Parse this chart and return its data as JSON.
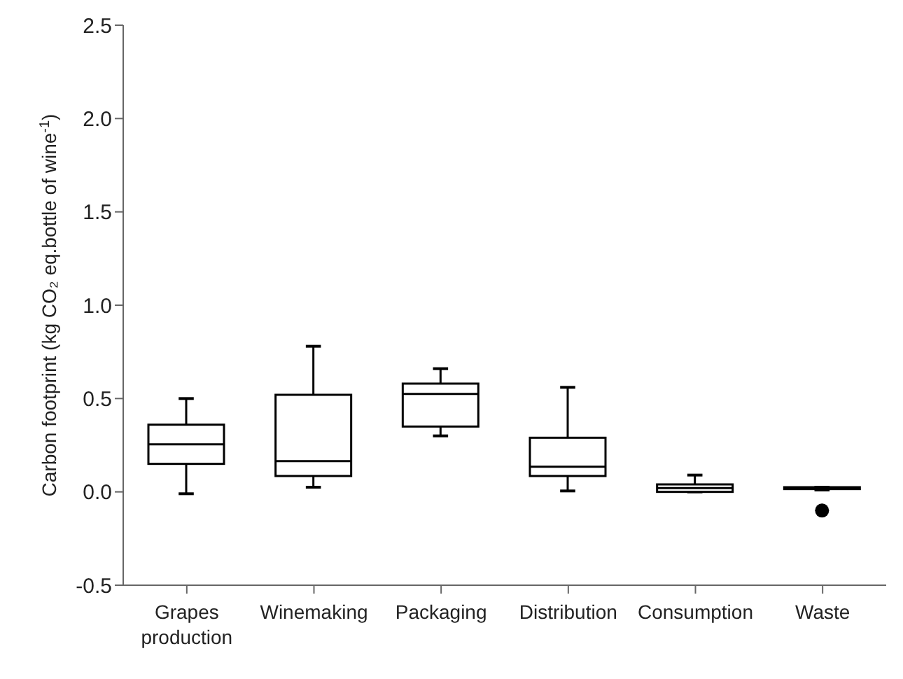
{
  "chart_data": {
    "type": "box",
    "ylabel": "Carbon footprint (kg CO₂ eq.bottle of wine$^{-1}$)",
    "categories": [
      "Grapes production",
      "Winemaking",
      "Packaging",
      "Distribution",
      "Consumption",
      "Waste"
    ],
    "boxes": [
      {
        "low": -0.01,
        "q1": 0.15,
        "median": 0.255,
        "q3": 0.36,
        "high": 0.5
      },
      {
        "low": 0.025,
        "q1": 0.085,
        "median": 0.165,
        "q3": 0.52,
        "high": 0.78
      },
      {
        "low": 0.3,
        "q1": 0.35,
        "median": 0.525,
        "q3": 0.58,
        "high": 0.66
      },
      {
        "low": 0.005,
        "q1": 0.085,
        "median": 0.135,
        "q3": 0.29,
        "high": 0.56
      },
      {
        "low": 0,
        "q1": 0,
        "median": 0.02,
        "q3": 0.04,
        "high": 0.09
      },
      {
        "low": 0.01,
        "q1": 0.015,
        "median": 0.02,
        "q3": 0.025,
        "high": 0.025,
        "outliers": [
          -0.1
        ]
      }
    ],
    "color": "#000000",
    "ylim": [
      -0.5,
      2.5
    ],
    "yticks": [
      {
        "value": -0.5,
        "label": "-0.5"
      },
      {
        "value": 0,
        "label": "0.0"
      },
      {
        "value": 0.5,
        "label": "0.5"
      },
      {
        "value": 1,
        "label": "1.0"
      },
      {
        "value": 1.5,
        "label": "1.5"
      },
      {
        "value": 2,
        "label": "2.0"
      },
      {
        "value": 2.5,
        "label": "2.5"
      }
    ],
    "grid": false,
    "legend": false
  }
}
